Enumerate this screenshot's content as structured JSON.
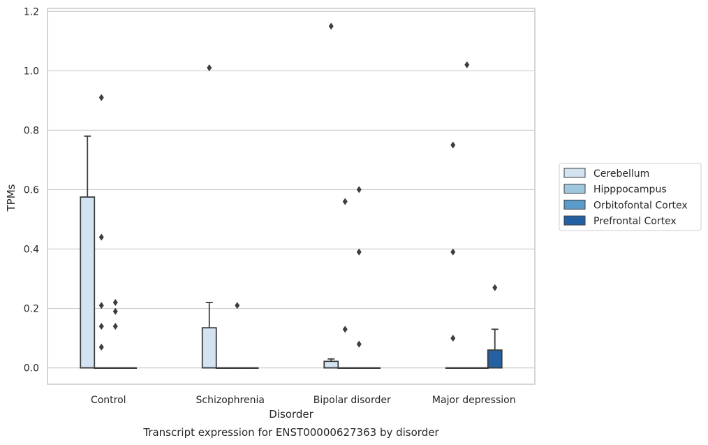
{
  "chart_data": {
    "type": "box",
    "title": "Transcript expression for ENST00000627363 by disorder",
    "xlabel": "Disorder",
    "ylabel": "TPMs",
    "ylim": [
      -0.055,
      1.21
    ],
    "yticks": [
      0.0,
      0.2,
      0.4,
      0.6,
      0.8,
      1.0,
      1.2
    ],
    "ytick_labels": [
      "0.0",
      "0.2",
      "0.4",
      "0.6",
      "0.8",
      "1.0",
      "1.2"
    ],
    "grid": "horizontal",
    "legend_position": "right",
    "categories": [
      "Control",
      "Schizophrenia",
      "Bipolar disorder",
      "Major depression"
    ],
    "series": [
      {
        "name": "Cerebellum",
        "color": "#d3e3f1",
        "boxes": [
          {
            "q1": 0,
            "median": 0,
            "q3": 0.575,
            "whisker_low": 0,
            "whisker_high": 0.78,
            "outliers": []
          },
          {
            "q1": 0,
            "median": 0,
            "q3": 0.135,
            "whisker_low": 0,
            "whisker_high": 0.22,
            "outliers": [
              1.01
            ]
          },
          {
            "q1": 0,
            "median": 0,
            "q3": 0.022,
            "whisker_low": 0,
            "whisker_high": 0.03,
            "outliers": [
              1.15
            ]
          },
          {
            "q1": 0,
            "median": 0,
            "q3": 0,
            "whisker_low": 0,
            "whisker_high": 0,
            "outliers": [
              0.75,
              0.39,
              0.1
            ]
          }
        ]
      },
      {
        "name": "Hipppocampus",
        "color": "#9fc7de",
        "boxes": [
          {
            "q1": 0,
            "median": 0,
            "q3": 0,
            "whisker_low": 0,
            "whisker_high": 0,
            "outliers": [
              0.44,
              0.21,
              0.14,
              0.07,
              0.91
            ]
          },
          {
            "q1": 0,
            "median": 0,
            "q3": 0,
            "whisker_low": 0,
            "whisker_high": 0,
            "outliers": []
          },
          {
            "q1": 0,
            "median": 0,
            "q3": 0,
            "whisker_low": 0,
            "whisker_high": 0,
            "outliers": [
              0.56,
              0.13
            ]
          },
          {
            "q1": 0,
            "median": 0,
            "q3": 0,
            "whisker_low": 0,
            "whisker_high": 0,
            "outliers": [
              1.02
            ]
          }
        ]
      },
      {
        "name": "Orbitofontal Cortex",
        "color": "#5b9bc9",
        "boxes": [
          {
            "q1": 0,
            "median": 0,
            "q3": 0,
            "whisker_low": 0,
            "whisker_high": 0,
            "outliers": [
              0.22,
              0.19,
              0.14
            ]
          },
          {
            "q1": 0,
            "median": 0,
            "q3": 0,
            "whisker_low": 0,
            "whisker_high": 0,
            "outliers": [
              0.21
            ]
          },
          {
            "q1": 0,
            "median": 0,
            "q3": 0,
            "whisker_low": 0,
            "whisker_high": 0,
            "outliers": [
              0.6,
              0.39,
              0.08
            ]
          },
          {
            "q1": 0,
            "median": 0,
            "q3": 0,
            "whisker_low": 0,
            "whisker_high": 0,
            "outliers": []
          }
        ]
      },
      {
        "name": "Prefrontal Cortex",
        "color": "#2461a2",
        "boxes": [
          {
            "q1": 0,
            "median": 0,
            "q3": 0,
            "whisker_low": 0,
            "whisker_high": 0,
            "outliers": []
          },
          {
            "q1": 0,
            "median": 0,
            "q3": 0,
            "whisker_low": 0,
            "whisker_high": 0,
            "outliers": []
          },
          {
            "q1": 0,
            "median": 0,
            "q3": 0,
            "whisker_low": 0,
            "whisker_high": 0,
            "outliers": []
          },
          {
            "q1": 0,
            "median": 0,
            "q3": 0.06,
            "whisker_low": 0,
            "whisker_high": 0.13,
            "outliers": [
              0.27
            ]
          }
        ]
      }
    ]
  }
}
